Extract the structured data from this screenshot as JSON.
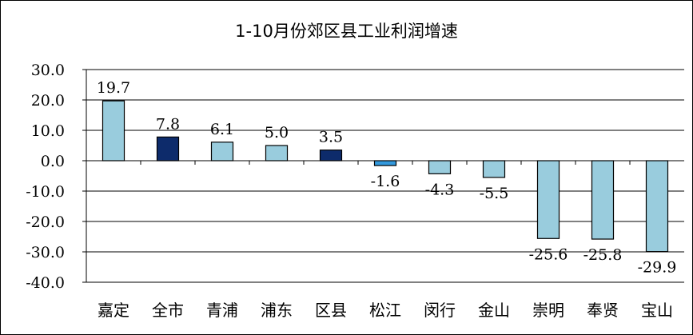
{
  "chart_data": {
    "type": "bar",
    "title": "1-10月份郊区县工业利润增速",
    "categories": [
      "嘉定",
      "全市",
      "青浦",
      "浦东",
      "区县",
      "松江",
      "闵行",
      "金山",
      "崇明",
      "奉贤",
      "宝山"
    ],
    "values": [
      19.7,
      7.8,
      6.1,
      5.0,
      3.5,
      -1.6,
      -4.3,
      -5.5,
      -25.6,
      -25.8,
      -29.9
    ],
    "value_labels": [
      "19.7",
      "7.8",
      "6.1",
      "5.0",
      "3.5",
      "-1.6",
      "-4.3",
      "-5.5",
      "-25.6",
      "-25.8",
      "-29.9"
    ],
    "bar_colors": [
      "#99CCDD",
      "#0D2B6B",
      "#99CCDD",
      "#99CCDD",
      "#0D2B6B",
      "#3399DD",
      "#99CCDD",
      "#99CCDD",
      "#99CCDD",
      "#99CCDD",
      "#99CCDD"
    ],
    "yticks": [
      "30.0",
      "20.0",
      "10.0",
      "0.0",
      "-10.0",
      "-20.0",
      "-30.0",
      "-40.0"
    ],
    "ylim": [
      -40,
      30
    ],
    "xlabel": "",
    "ylabel": "",
    "grid": "horizontal",
    "legend": "none"
  }
}
